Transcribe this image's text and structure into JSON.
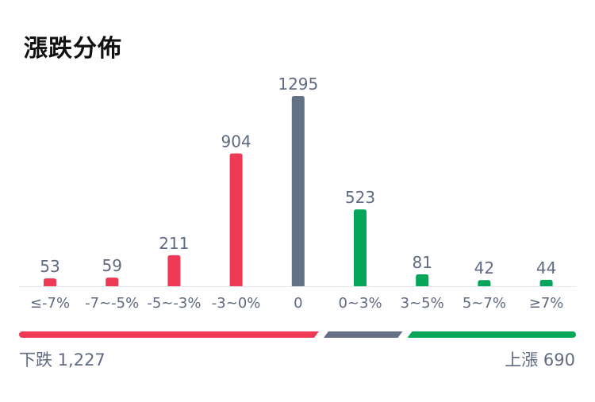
{
  "title": "漲跌分佈",
  "colors": {
    "down": "#ef3a55",
    "flat": "#647086",
    "up": "#05a65a",
    "label": "#5f6b80",
    "baseline": "#e6e8ec"
  },
  "chart_data": {
    "type": "bar",
    "categories": [
      "≤-7%",
      "-7~-5%",
      "-5~-3%",
      "-3~0%",
      "0",
      "0~3%",
      "3~5%",
      "5~7%",
      "≥7%"
    ],
    "values": [
      53,
      59,
      211,
      904,
      1295,
      523,
      81,
      42,
      44
    ],
    "bar_colors": [
      "down",
      "down",
      "down",
      "down",
      "flat",
      "up",
      "up",
      "up",
      "up"
    ],
    "ylim": [
      0,
      1295
    ],
    "grid": false
  },
  "summary": {
    "down_label": "下跌 1,227",
    "up_label": "上漲 690",
    "down_count": 1227,
    "flat_count": 1295,
    "up_count": 690
  }
}
